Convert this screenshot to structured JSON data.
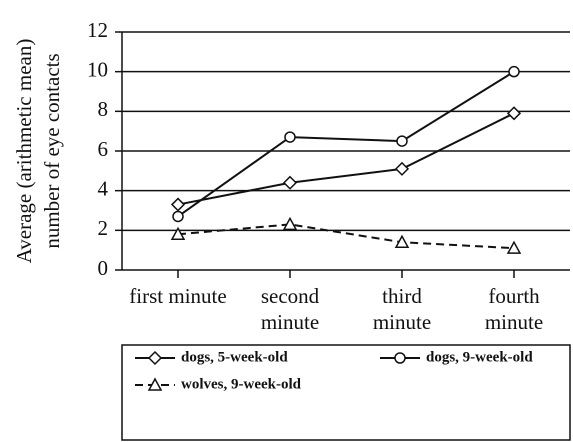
{
  "chart_data": {
    "type": "line",
    "ylabel": [
      "Average (arithmetic mean)",
      "number of eye contacts"
    ],
    "categories": [
      "first minute",
      "second minute",
      "third minute",
      "fourth minute"
    ],
    "series": [
      {
        "name": "dogs, 5-week-old",
        "color": "#111111",
        "marker": "diamond",
        "dashed": false,
        "values": [
          3.3,
          4.4,
          5.1,
          7.9
        ]
      },
      {
        "name": "dogs, 9-week-old",
        "color": "#111111",
        "marker": "circle",
        "dashed": false,
        "values": [
          2.7,
          6.7,
          6.5,
          10
        ]
      },
      {
        "name": "wolves, 9-week-old",
        "color": "#111111",
        "marker": "triangle",
        "dashed": true,
        "values": [
          1.8,
          2.3,
          1.4,
          1.1
        ]
      }
    ],
    "ylim": [
      0,
      12
    ],
    "yticks": [
      0,
      2,
      4,
      6,
      8,
      10,
      12
    ],
    "grid": true
  }
}
